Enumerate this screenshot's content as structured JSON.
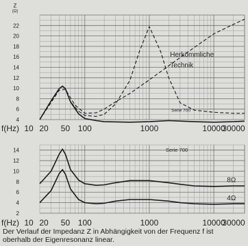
{
  "chart_data": [
    {
      "type": "line",
      "x_scale": "log",
      "xlim": [
        20,
        30000
      ],
      "ylim": [
        4,
        24
      ],
      "ylabel": "Z",
      "yunit": "(Ω)",
      "xlabel": "f(Hz)",
      "x_ticks": [
        10,
        20,
        50,
        100,
        1000,
        10000,
        30000
      ],
      "x_tick_labels": [
        "10",
        "20",
        "50",
        "100",
        "1000",
        "10000",
        "30000"
      ],
      "y_ticks": [
        4,
        6,
        8,
        10,
        12,
        14,
        16,
        18,
        20,
        22
      ],
      "y_tick_labels": [
        "4",
        "6",
        "8",
        "10",
        "12",
        "14",
        "16",
        "18",
        "20",
        "22"
      ],
      "grid": true,
      "series": [
        {
          "name": "Serie 700",
          "style": "solid",
          "x": [
            20,
            30,
            40,
            45,
            50,
            60,
            80,
            100,
            150,
            200,
            500,
            1000,
            2000,
            5000,
            10000,
            20000,
            30000
          ],
          "y": [
            4,
            7.6,
            9.9,
            10.4,
            9.9,
            7.4,
            5.1,
            4.2,
            3.8,
            3.6,
            3.5,
            3.6,
            3.8,
            3.6,
            3.5,
            3.6,
            3.7
          ]
        },
        {
          "name": "Herkömmliche Technik",
          "style": "dashed",
          "x": [
            20,
            30,
            40,
            45,
            50,
            60,
            80,
            100,
            150,
            200,
            300,
            500,
            700,
            1000,
            1500,
            2000,
            3000,
            5000,
            10000,
            20000,
            30000
          ],
          "y": [
            4,
            7.6,
            9.9,
            10.4,
            9.9,
            7.4,
            5.6,
            4.8,
            4.6,
            5,
            7,
            11.5,
            17,
            21.8,
            17,
            12,
            7.2,
            5.8,
            5.4,
            5.2,
            5.2
          ]
        },
        {
          "name": "",
          "style": "dashed",
          "x": [
            20,
            40,
            50,
            70,
            100,
            150,
            200,
            300,
            500,
            1000,
            2000,
            5000,
            10000,
            20000,
            30000
          ],
          "y": [
            4,
            9.6,
            9.8,
            6.8,
            5.2,
            5.3,
            6,
            7.4,
            9,
            11.6,
            14.3,
            17.8,
            20.4,
            22.2,
            23.2
          ]
        }
      ],
      "annotations": [
        {
          "text": "Herkömmliche",
          "x": 2100,
          "y": 16
        },
        {
          "text": "Technik",
          "x": 2100,
          "y": 14
        },
        {
          "text": "Serie 700",
          "x": 2200,
          "y": 5.5
        }
      ]
    },
    {
      "type": "line",
      "x_scale": "log",
      "xlim": [
        20,
        30000
      ],
      "ylim": [
        2,
        15
      ],
      "xlabel": "f(Hz)",
      "x_ticks": [
        10,
        20,
        50,
        100,
        1000,
        10000,
        30000
      ],
      "x_tick_labels": [
        "10",
        "20",
        "50",
        "100",
        "1000",
        "10000",
        "30000"
      ],
      "y_ticks": [
        2,
        4,
        6,
        8,
        10,
        12,
        14
      ],
      "y_tick_labels": [
        "2",
        "4",
        "6",
        "8",
        "10",
        "12",
        "14"
      ],
      "grid": true,
      "title": "Serie 700",
      "series": [
        {
          "name": "8Ω",
          "style": "solid",
          "x": [
            20,
            30,
            40,
            45,
            50,
            60,
            80,
            100,
            150,
            200,
            300,
            500,
            1000,
            2000,
            3000,
            5000,
            10000,
            20000,
            30000
          ],
          "y": [
            7.6,
            10,
            13.2,
            14.2,
            13.2,
            10.3,
            8.3,
            7.6,
            7.3,
            7.4,
            7.8,
            8.2,
            8.2,
            7.8,
            7.5,
            7.2,
            7.1,
            7.2,
            7.2
          ]
        },
        {
          "name": "4Ω",
          "style": "solid",
          "x": [
            20,
            30,
            40,
            45,
            50,
            60,
            80,
            100,
            150,
            200,
            300,
            500,
            1000,
            2000,
            3000,
            5000,
            10000,
            20000,
            30000
          ],
          "y": [
            4,
            6.3,
            9.5,
            10.3,
            9.4,
            6.6,
            4.6,
            4,
            3.8,
            3.9,
            4.3,
            4.6,
            4.6,
            4.3,
            4,
            3.8,
            3.7,
            3.8,
            3.8
          ]
        }
      ],
      "annotations": [
        {
          "text": "8Ω",
          "x": 16000,
          "y": 7.9
        },
        {
          "text": "4Ω",
          "x": 16000,
          "y": 4.5
        }
      ]
    }
  ],
  "caption": {
    "line1": "Der Verlauf der Impedanz Z in Abhängigkeit von der Frequenz f ist",
    "line2": "oberhalb der Eigenresonanz linear."
  }
}
